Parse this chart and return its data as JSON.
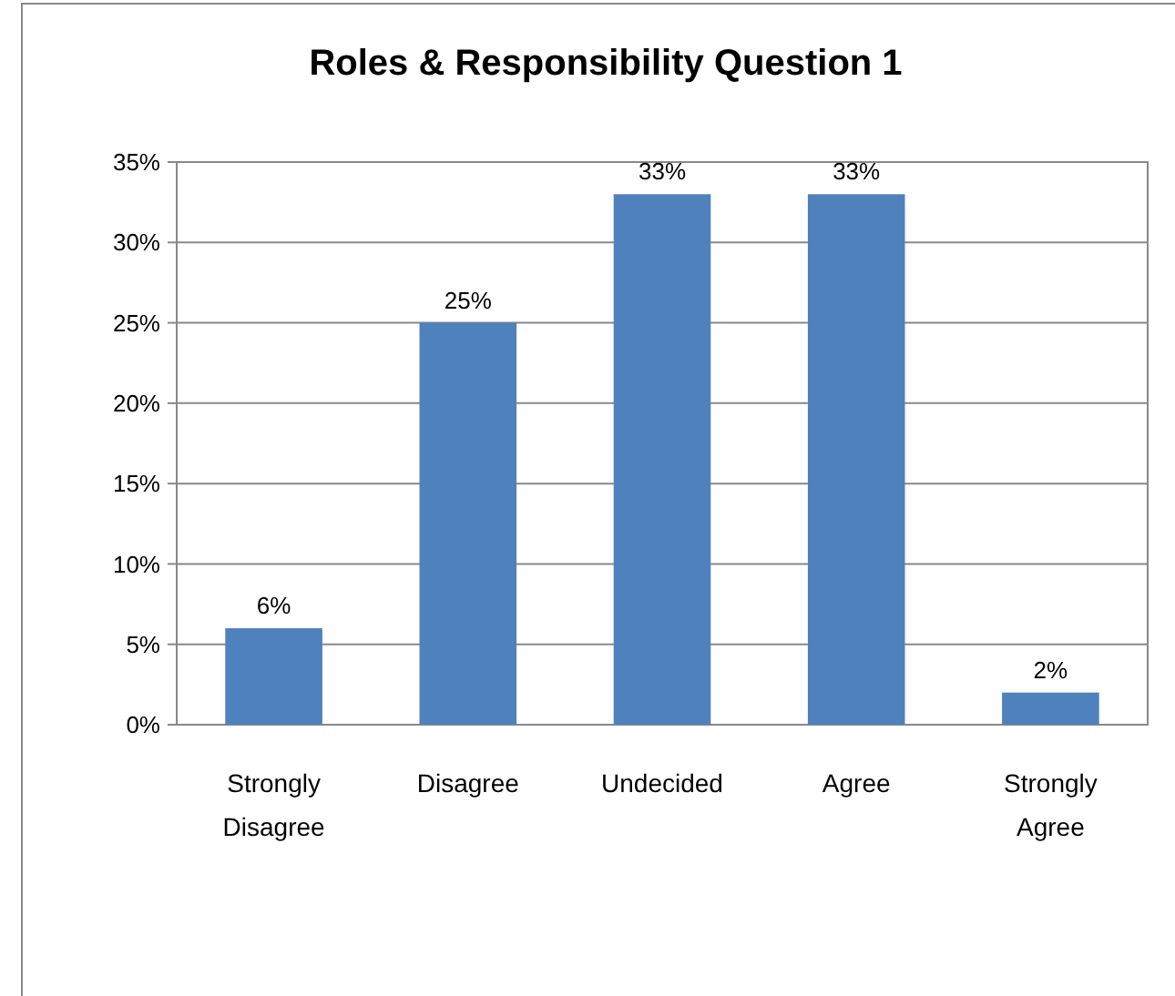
{
  "chart_data": {
    "type": "bar",
    "title": "Roles & Responsibility Question 1",
    "categories": [
      "Strongly Disagree",
      "Disagree",
      "Undecided",
      "Agree",
      "Strongly Agree"
    ],
    "values": [
      6,
      25,
      33,
      33,
      2
    ],
    "color": "#4f81bd",
    "data_labels": true,
    "value_labels": [
      "6%",
      "25%",
      "33%",
      "33%",
      "2%"
    ],
    "ylim": [
      0,
      35
    ],
    "yticks": [
      {
        "value": 0,
        "label": "0%"
      },
      {
        "value": 5,
        "label": "5%"
      },
      {
        "value": 10,
        "label": "10%"
      },
      {
        "value": 15,
        "label": "15%"
      },
      {
        "value": 20,
        "label": "20%"
      },
      {
        "value": 25,
        "label": "25%"
      },
      {
        "value": 30,
        "label": "30%"
      },
      {
        "value": 35,
        "label": "35%"
      }
    ],
    "grid": "y"
  }
}
